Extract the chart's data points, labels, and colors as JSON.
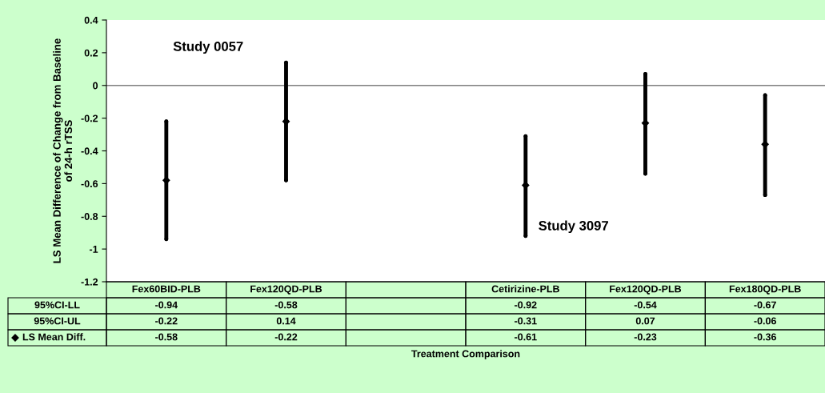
{
  "chart_data": {
    "type": "scatter",
    "categories": [
      "Fex60BID-PLB",
      "Fex120QD-PLB",
      null,
      "Cetirizine-PLB",
      "Fex120QD-PLB",
      "Fex180QD-PLB"
    ],
    "series": [
      {
        "color": "#000000",
        "marker": "circle",
        "values": [
          -0.94,
          -0.58,
          null,
          -0.92,
          -0.54,
          -0.67
        ]
      },
      {
        "color": "#000000",
        "marker": "circle",
        "values": [
          -0.22,
          0.14,
          null,
          -0.31,
          0.07,
          -0.06
        ]
      },
      {
        "name": "LS Mean Diff.",
        "color": "#000000",
        "marker": "diamond",
        "values": [
          -0.58,
          -0.22,
          null,
          -0.61,
          -0.23,
          -0.36
        ]
      }
    ],
    "data_labels": true,
    "ylabel": "LS Mean Difference of Change from Baseline\nof 24-h rTSS",
    "ylim": [
      -1.2,
      0.4
    ],
    "yticks": [
      {
        "value": -1.2,
        "label": "-1.2"
      },
      {
        "value": -1,
        "label": "-1"
      },
      {
        "value": -0.8,
        "label": "-0.8"
      },
      {
        "value": -0.6,
        "label": "-0.6"
      },
      {
        "value": -0.4,
        "label": "-0.4"
      },
      {
        "value": -0.2,
        "label": "-0.2"
      },
      0,
      0.2,
      0.4
    ],
    "grid": false,
    "ref_lines": [
      {
        "axis": "y",
        "value": 0,
        "color": "#808080"
      }
    ],
    "annotations": [
      "Study 0057",
      "Study 3097",
      "Treatment Comparison",
      "95%CI-LL",
      "95%CI-UL"
    ]
  }
}
